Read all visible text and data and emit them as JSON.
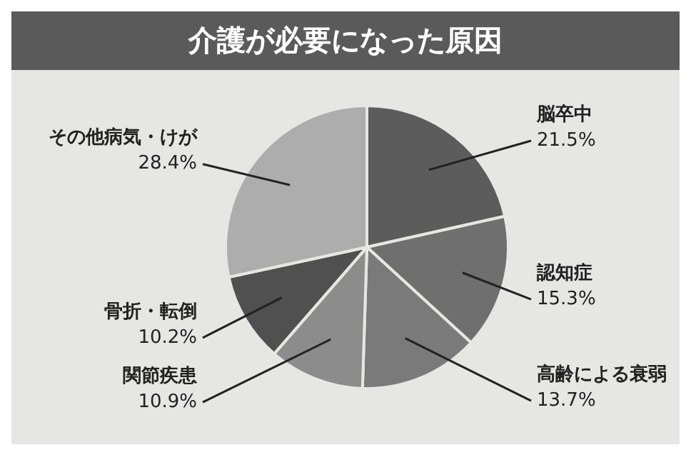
{
  "chart_data": {
    "type": "pie",
    "title": "介護が必要になった原因",
    "categories": [
      "脳卒中",
      "認知症",
      "高齢による衰弱",
      "関節疾患",
      "骨折・転倒",
      "その他病気・けが"
    ],
    "values": [
      21.5,
      15.3,
      13.7,
      10.9,
      10.2,
      28.4
    ],
    "value_labels": [
      "21.5%",
      "15.3%",
      "13.7%",
      "10.9%",
      "10.2%",
      "28.4%"
    ],
    "colors": [
      "#5c5c5c",
      "#6f6f6f",
      "#7a7a7a",
      "#8c8c8c",
      "#505050",
      "#adadad"
    ],
    "legend": false
  }
}
